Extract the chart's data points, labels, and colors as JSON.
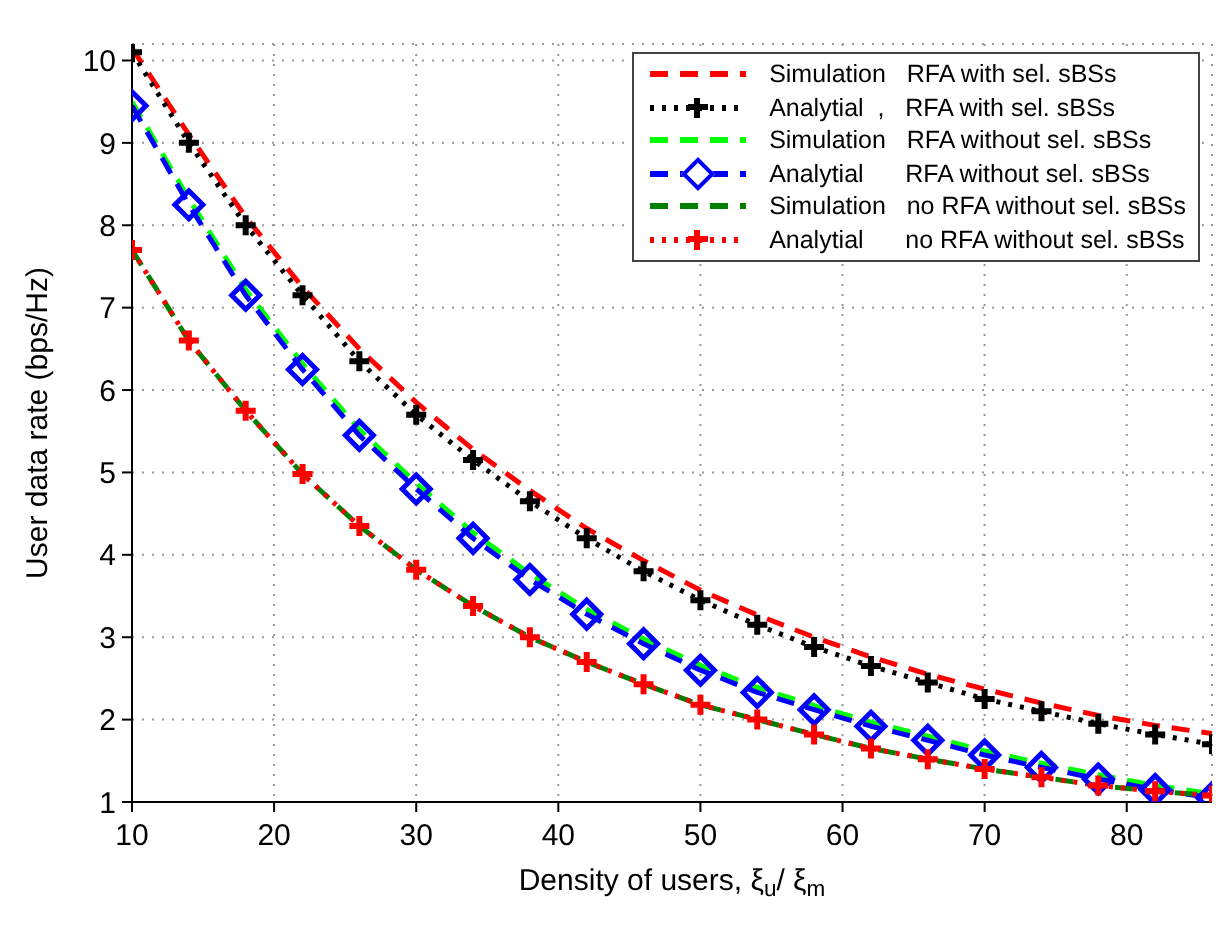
{
  "chart_data": {
    "type": "line",
    "xlabel": "Density of users, ξ$_{u}$/ ξ$_{m}$",
    "ylabel": "User data rate (bps/Hz)",
    "x": [
      10,
      14,
      18,
      22,
      26,
      30,
      34,
      38,
      42,
      46,
      50,
      54,
      58,
      62,
      66,
      70,
      74,
      78,
      82,
      86
    ],
    "xlim": [
      10,
      86
    ],
    "xticks": [
      10,
      20,
      30,
      40,
      50,
      60,
      70,
      80
    ],
    "ylim": [
      1,
      10.2
    ],
    "yticks": [
      1,
      2,
      3,
      4,
      5,
      6,
      7,
      8,
      9,
      10
    ],
    "grid": true,
    "legend": "top right",
    "series": [
      {
        "name": "Simulation   RFA with sel. sBSs",
        "color": "#ff0000",
        "line_style": "dashed",
        "marker": "none",
        "values": [
          10.15,
          9.1,
          8.1,
          7.25,
          6.5,
          5.85,
          5.28,
          4.78,
          4.32,
          3.93,
          3.57,
          3.27,
          3.0,
          2.76,
          2.55,
          2.37,
          2.2,
          2.05,
          1.93,
          1.83
        ]
      },
      {
        "name": "Analytial  ,   RFA with sel. sBSs",
        "color": "#000000",
        "line_style": "dotted",
        "marker": "cross",
        "values": [
          10.1,
          9.0,
          8.0,
          7.15,
          6.35,
          5.7,
          5.15,
          4.65,
          4.2,
          3.8,
          3.45,
          3.15,
          2.88,
          2.65,
          2.45,
          2.25,
          2.1,
          1.95,
          1.82,
          1.7
        ]
      },
      {
        "name": "Simulation   RFA without sel. sBSs",
        "color": "#00ff00",
        "line_style": "dashed",
        "marker": "none",
        "values": [
          9.5,
          8.32,
          7.22,
          6.32,
          5.52,
          4.87,
          4.27,
          3.77,
          3.34,
          2.98,
          2.66,
          2.39,
          2.17,
          1.97,
          1.8,
          1.62,
          1.47,
          1.33,
          1.2,
          1.1
        ]
      },
      {
        "name": "Analytial      RFA without sel. sBSs",
        "color": "#0000ff",
        "line_style": "dashed",
        "marker": "diamond",
        "values": [
          9.45,
          8.25,
          7.15,
          6.25,
          5.45,
          4.8,
          4.2,
          3.7,
          3.28,
          2.92,
          2.6,
          2.33,
          2.12,
          1.92,
          1.75,
          1.57,
          1.42,
          1.28,
          1.15,
          1.05
        ]
      },
      {
        "name": "Simulation   no RFA without sel. sBSs",
        "color": "#008000",
        "line_style": "dashed",
        "marker": "none",
        "values": [
          7.7,
          6.6,
          5.75,
          4.98,
          4.35,
          3.82,
          3.38,
          3.0,
          2.7,
          2.43,
          2.18,
          2.0,
          1.82,
          1.65,
          1.52,
          1.4,
          1.3,
          1.2,
          1.13,
          1.08
        ]
      },
      {
        "name": "Analytial      no RFA without sel. sBSs",
        "color": "#ff0000",
        "line_style": "dotted",
        "marker": "cross",
        "values": [
          7.7,
          6.6,
          5.75,
          4.98,
          4.35,
          3.82,
          3.38,
          3.0,
          2.7,
          2.43,
          2.18,
          2.0,
          1.82,
          1.65,
          1.52,
          1.4,
          1.3,
          1.2,
          1.13,
          1.08
        ]
      }
    ]
  }
}
